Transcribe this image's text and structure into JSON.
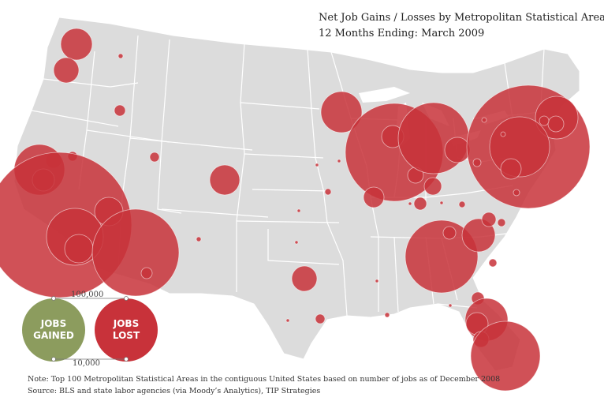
{
  "title": {
    "line1": "Net Job Gains / Losses by  Metropolitan Statistical Area,",
    "line2": "12 Months Ending:  March  2009"
  },
  "legend": {
    "scale_large": "100,000",
    "scale_small": "10,000",
    "gained_line1": "JOBS",
    "gained_line2": "GAINED",
    "lost_line1": "JOBS",
    "lost_line2": "LOST",
    "gained_color": "#8c9c5e",
    "lost_color": "#c8323a"
  },
  "colors": {
    "land": "#dcdcdc",
    "state_border": "#ffffff",
    "bubble_lost": "#c8323a",
    "bubble_gained": "#8c9c5e"
  },
  "footnote": {
    "note": "Note: Top 100 Metropolitan Statistical Areas in the contiguous United States based on number of jobs as of December 2008",
    "source": "Source:  BLS and state labor agencies (via Moody’s Analytics), TIP Strategies"
  }
}
